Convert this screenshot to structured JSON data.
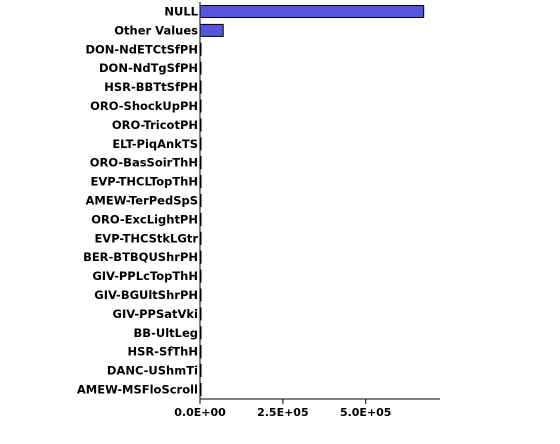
{
  "chart_data": {
    "type": "bar",
    "orientation": "horizontal",
    "categories": [
      "NULL",
      "Other Values",
      "DON-NdETCtSfPH",
      "DON-NdTgSfPH",
      "HSR-BBTtSfPH",
      "ORO-ShockUpPH",
      "ORO-TricotPH",
      "ELT-PiqAnkTS",
      "ORO-BasSoirThH",
      "EVP-THCLTopThH",
      "AMEW-TerPedSpS",
      "ORO-ExcLightPH",
      "EVP-THCStkLGtr",
      "BER-BTBQUShrPH",
      "GIV-PPLcTopThH",
      "GIV-BGUltShrPH",
      "GIV-PPSatVki",
      "BB-UltLeg",
      "HSR-SfThH",
      "DANC-UShmTi",
      "AMEW-MSFloScroll"
    ],
    "values": [
      675000,
      70000,
      2200,
      2000,
      1800,
      1600,
      1500,
      1400,
      1300,
      1200,
      1100,
      1000,
      950,
      900,
      850,
      800,
      750,
      700,
      650,
      600,
      550
    ],
    "x_ticks": [
      {
        "value": 0,
        "label": "0.0E+00"
      },
      {
        "value": 250000,
        "label": "2.5E+05"
      },
      {
        "value": 500000,
        "label": "5.0E+05"
      }
    ],
    "xlim": [
      0,
      700000
    ],
    "grid": false,
    "colors": {
      "bar_fill": "#5555dd",
      "bar_stroke": "#000000",
      "axis": "#000000"
    },
    "title": "",
    "xlabel": "",
    "ylabel": ""
  }
}
